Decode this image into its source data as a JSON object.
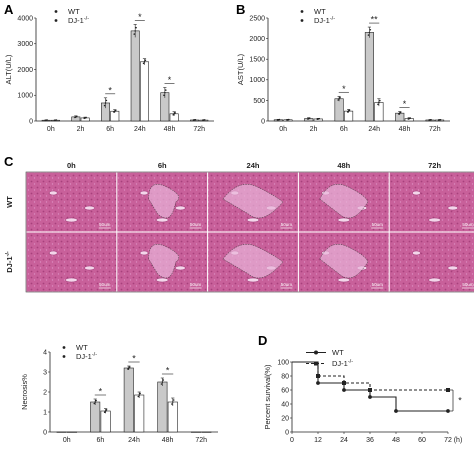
{
  "panels": {
    "A": "A",
    "B": "B",
    "C": "C",
    "D": "D"
  },
  "colors": {
    "wt_bar": "#c9c9c9",
    "dj_bar": "#ffffff",
    "tissue": "#c8609a",
    "tissue_light": "#dc8cc0",
    "necrosis": "#e8b4d8",
    "outline": "#222222"
  },
  "chart_data": [
    {
      "id": "alt",
      "type": "bar",
      "ylabel": "ALT(U/L)",
      "ylim": [
        0,
        4000
      ],
      "yticks": [
        "0",
        "1000",
        "2000",
        "3000",
        "4000"
      ],
      "categories": [
        "0h",
        "2h",
        "6h",
        "24h",
        "48h",
        "72h"
      ],
      "series": [
        {
          "name": "WT",
          "values": [
            30,
            160,
            700,
            3500,
            1100,
            40
          ],
          "errors": [
            15,
            40,
            200,
            250,
            200,
            15
          ]
        },
        {
          "name": "DJ-1-/-",
          "values": [
            30,
            120,
            380,
            2300,
            280,
            35
          ],
          "errors": [
            15,
            30,
            60,
            120,
            80,
            15
          ]
        }
      ],
      "significance": [
        {
          "category": "6h",
          "label": "*"
        },
        {
          "category": "24h",
          "label": "*"
        },
        {
          "category": "48h",
          "label": "*"
        }
      ]
    },
    {
      "id": "ast",
      "type": "bar",
      "ylabel": "AST(U/L)",
      "ylim": [
        0,
        2500
      ],
      "yticks": [
        "0",
        "500",
        "1000",
        "1500",
        "2000",
        "2500"
      ],
      "categories": [
        "0h",
        "2h",
        "6h",
        "24h",
        "48h",
        "72h"
      ],
      "series": [
        {
          "name": "WT",
          "values": [
            30,
            60,
            540,
            2150,
            190,
            25
          ],
          "errors": [
            10,
            20,
            60,
            130,
            40,
            10
          ]
        },
        {
          "name": "DJ-1-/-",
          "values": [
            30,
            50,
            240,
            450,
            60,
            25
          ],
          "errors": [
            10,
            15,
            40,
            90,
            20,
            10
          ]
        }
      ],
      "significance": [
        {
          "category": "6h",
          "label": "*"
        },
        {
          "category": "24h",
          "label": "**"
        },
        {
          "category": "48h",
          "label": "*"
        }
      ]
    },
    {
      "id": "necrosis",
      "type": "bar",
      "ylabel": "Necrosis%",
      "ylim": [
        0,
        4
      ],
      "yticks": [
        "0",
        "1",
        "2",
        "3",
        "4"
      ],
      "categories": [
        "0h",
        "6h",
        "24h",
        "48h",
        "72h"
      ],
      "series": [
        {
          "name": "WT",
          "values": [
            0,
            1.5,
            3.2,
            2.5,
            0
          ],
          "errors": [
            0,
            0.15,
            0.1,
            0.2,
            0
          ]
        },
        {
          "name": "DJ-1-/-",
          "values": [
            0,
            1.05,
            1.85,
            1.5,
            0
          ],
          "errors": [
            0,
            0.12,
            0.15,
            0.2,
            0
          ]
        }
      ],
      "significance": [
        {
          "category": "6h",
          "label": "*"
        },
        {
          "category": "24h",
          "label": "*"
        },
        {
          "category": "48h",
          "label": "*"
        }
      ]
    },
    {
      "id": "survival",
      "type": "line",
      "ylabel": "Percent survival(%)",
      "ylim": [
        0,
        100
      ],
      "yticks": [
        "0",
        "20",
        "40",
        "60",
        "80",
        "100"
      ],
      "xlim": [
        0,
        72
      ],
      "xticks": [
        "0",
        "12",
        "24",
        "36",
        "48",
        "60",
        "72"
      ],
      "xunit": "(h)",
      "series": [
        {
          "name": "WT",
          "steps": [
            [
              0,
              100
            ],
            [
              12,
              70
            ],
            [
              24,
              60
            ],
            [
              36,
              60
            ],
            [
              36,
              50
            ],
            [
              48,
              30
            ],
            [
              72,
              30
            ]
          ],
          "marks": [
            12,
            24,
            36,
            48,
            72
          ]
        },
        {
          "name": "DJ-1-/-",
          "steps": [
            [
              0,
              100
            ],
            [
              12,
              80
            ],
            [
              24,
              70
            ],
            [
              36,
              60
            ],
            [
              72,
              60
            ]
          ],
          "marks": [
            12,
            24,
            36,
            72
          ]
        }
      ],
      "significance": [
        {
          "label": "*"
        }
      ]
    }
  ],
  "micrographs": {
    "columns": [
      "0h",
      "6h",
      "24h",
      "48h",
      "72h"
    ],
    "rows": [
      "WT",
      "DJ-1-/-"
    ],
    "scale_label": "50um"
  }
}
